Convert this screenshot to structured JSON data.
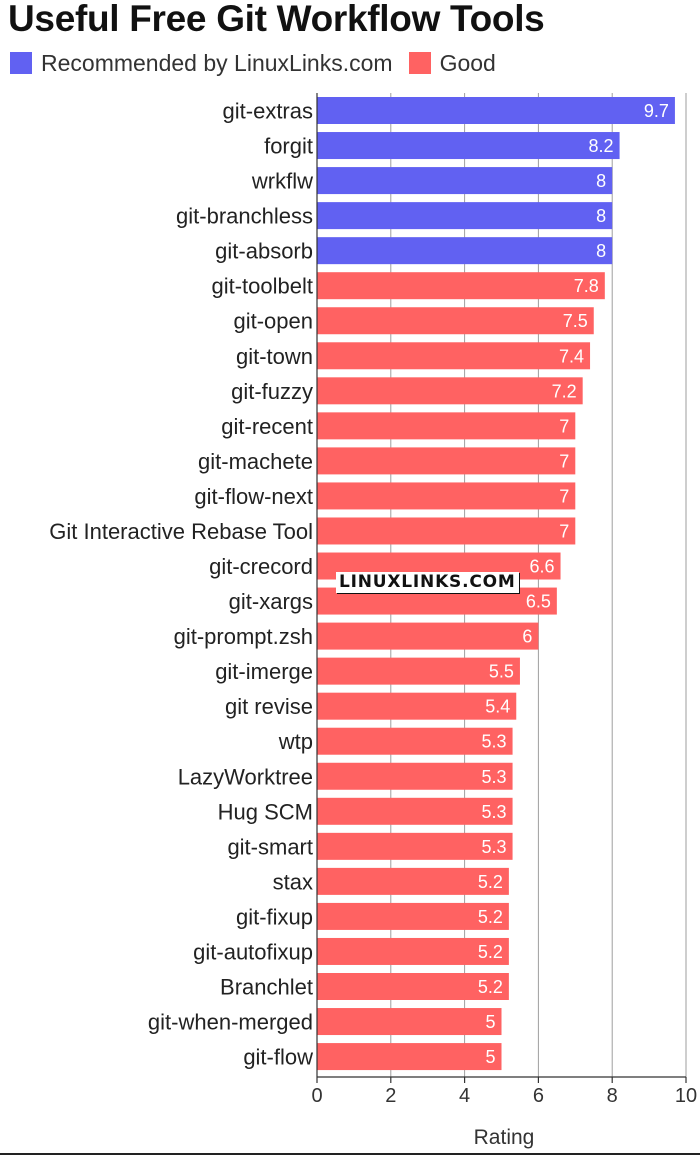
{
  "title": "Useful Free Git Workflow Tools",
  "colors": {
    "recommended": "#6161f2",
    "good": "#ff6262",
    "grid": "#9e9e9e",
    "axis": "#333333"
  },
  "watermark": "LINUXLINKS.COM",
  "chart_data": {
    "type": "bar",
    "orientation": "horizontal",
    "title": "Useful Free Git Workflow Tools",
    "xlabel": "Rating",
    "ylabel": "",
    "xlim": [
      0,
      10
    ],
    "xticks": [
      0,
      2,
      4,
      6,
      8,
      10
    ],
    "grid": true,
    "legend_position": "top-left",
    "series": [
      {
        "name": "Recommended by LinuxLinks.com",
        "color": "#6161f2"
      },
      {
        "name": "Good",
        "color": "#ff6262"
      }
    ],
    "categories": [
      "git-extras",
      "forgit",
      "wrkflw",
      "git-branchless",
      "git-absorb",
      "git-toolbelt",
      "git-open",
      "git-town",
      "git-fuzzy",
      "git-recent",
      "git-machete",
      "git-flow-next",
      "Git Interactive Rebase Tool",
      "git-crecord",
      "git-xargs",
      "git-prompt.zsh",
      "git-imerge",
      "git revise",
      "wtp",
      "LazyWorktree",
      "Hug SCM",
      "git-smart",
      "stax",
      "git-fixup",
      "git-autofixup",
      "Branchlet",
      "git-when-merged",
      "git-flow"
    ],
    "values": [
      9.7,
      8.2,
      8,
      8,
      8,
      7.8,
      7.5,
      7.4,
      7.2,
      7,
      7,
      7,
      7,
      6.6,
      6.5,
      6,
      5.5,
      5.4,
      5.3,
      5.3,
      5.3,
      5.3,
      5.2,
      5.2,
      5.2,
      5.2,
      5,
      5
    ],
    "value_labels": [
      "9.7",
      "8.2",
      "8",
      "8",
      "8",
      "7.8",
      "7.5",
      "7.4",
      "7.2",
      "7",
      "7",
      "7",
      "7",
      "6.6",
      "6.5",
      "6",
      "5.5",
      "5.4",
      "5.3",
      "5.3",
      "5.3",
      "5.3",
      "5.2",
      "5.2",
      "5.2",
      "5.2",
      "5",
      "5"
    ],
    "groups": [
      "Recommended by LinuxLinks.com",
      "Recommended by LinuxLinks.com",
      "Recommended by LinuxLinks.com",
      "Recommended by LinuxLinks.com",
      "Recommended by LinuxLinks.com",
      "Good",
      "Good",
      "Good",
      "Good",
      "Good",
      "Good",
      "Good",
      "Good",
      "Good",
      "Good",
      "Good",
      "Good",
      "Good",
      "Good",
      "Good",
      "Good",
      "Good",
      "Good",
      "Good",
      "Good",
      "Good",
      "Good",
      "Good"
    ]
  }
}
